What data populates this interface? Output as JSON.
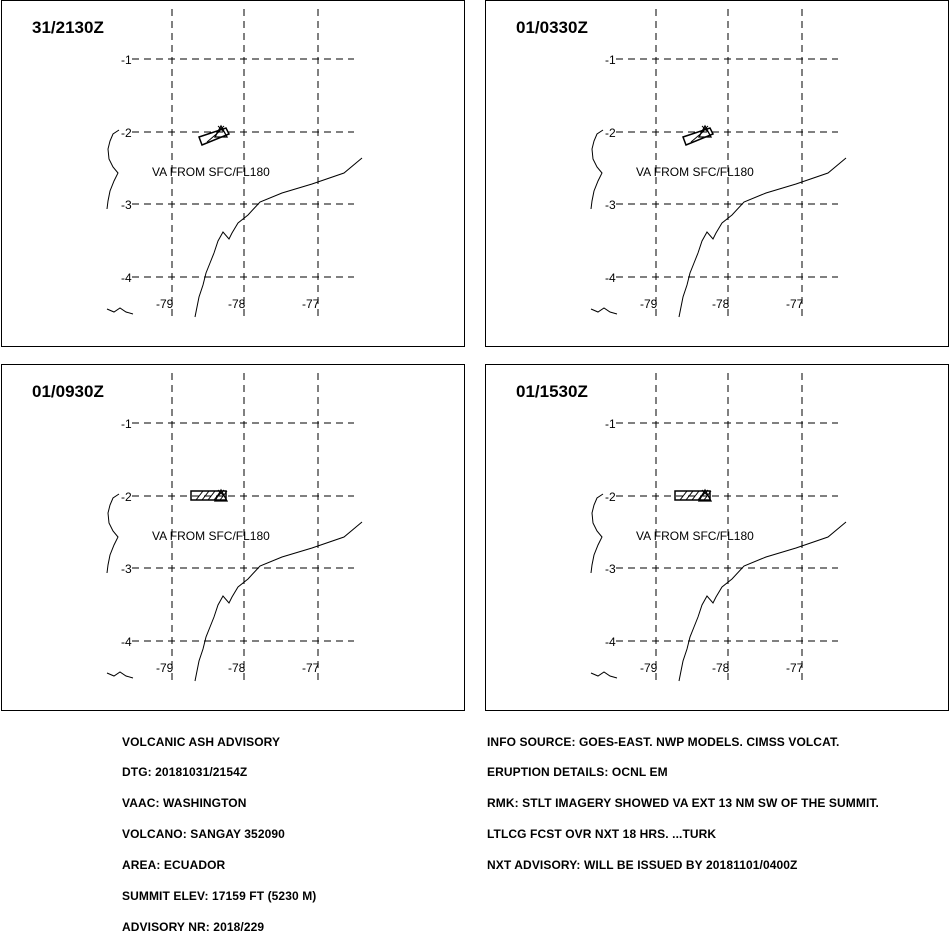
{
  "panels": [
    {
      "time": "31/2130Z",
      "label": "VA FROM SFC/FL180",
      "stage": 0
    },
    {
      "time": "01/0330Z",
      "label": "VA FROM SFC/FL180",
      "stage": 0
    },
    {
      "time": "01/0930Z",
      "label": "VA FROM SFC/FL180",
      "stage": 1
    },
    {
      "time": "01/1530Z",
      "label": "VA FROM SFC/FL180",
      "stage": 1
    }
  ],
  "axes": {
    "lat_labels": [
      "-1",
      "-2",
      "-3",
      "-4"
    ],
    "lon_labels": [
      "-79",
      "-78",
      "-77"
    ]
  },
  "advisory_left": [
    "VOLCANIC ASH ADVISORY",
    "DTG: 20181031/2154Z",
    "VAAC: WASHINGTON",
    "VOLCANO: SANGAY 352090",
    "AREA: ECUADOR",
    "SUMMIT ELEV: 17159 FT (5230 M)",
    "ADVISORY NR: 2018/229"
  ],
  "advisory_right": [
    "INFO SOURCE: GOES-EAST. NWP MODELS. CIMSS VOLCAT.",
    "ERUPTION DETAILS: OCNL EM",
    "RMK: STLT IMAGERY SHOWED VA EXT 13 NM SW OF THE SUMMIT.",
    "LTLCG FCST OVR NXT 18 HRS. ...TURK",
    "NXT ADVISORY: WILL BE ISSUED BY 20181101/0400Z"
  ]
}
